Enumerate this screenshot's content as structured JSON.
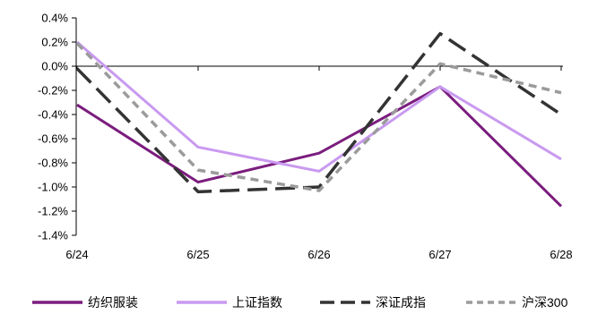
{
  "chart_data": {
    "type": "line",
    "categories": [
      "6/24",
      "6/25",
      "6/26",
      "6/27",
      "6/28"
    ],
    "ylim": [
      -1.4,
      0.4
    ],
    "yticks": [
      0.4,
      0.2,
      0.0,
      -0.2,
      -0.4,
      -0.6,
      -0.8,
      -1.0,
      -1.2,
      -1.4
    ],
    "ytick_labels": [
      "0.4%",
      "0.2%",
      "0.0%",
      "-0.2%",
      "-0.4%",
      "-0.6%",
      "-0.8%",
      "-1.0%",
      "-1.2%",
      "-1.4%"
    ],
    "legend_position": "bottom",
    "grid": false,
    "series": [
      {
        "name": "纺织服装",
        "values": [
          -0.32,
          -0.96,
          -0.72,
          -0.17,
          -1.16
        ],
        "color": "#7B1D7E",
        "style": "solid"
      },
      {
        "name": "上证指数",
        "values": [
          0.2,
          -0.67,
          -0.87,
          -0.17,
          -0.77
        ],
        "color": "#C99AF0",
        "style": "solid"
      },
      {
        "name": "深证成指",
        "values": [
          -0.02,
          -1.04,
          -1.0,
          0.27,
          -0.4
        ],
        "color": "#333333",
        "style": "longdash"
      },
      {
        "name": "沪深300",
        "values": [
          0.19,
          -0.86,
          -1.03,
          0.02,
          -0.22
        ],
        "color": "#9B9B9B",
        "style": "shortdash"
      }
    ]
  }
}
